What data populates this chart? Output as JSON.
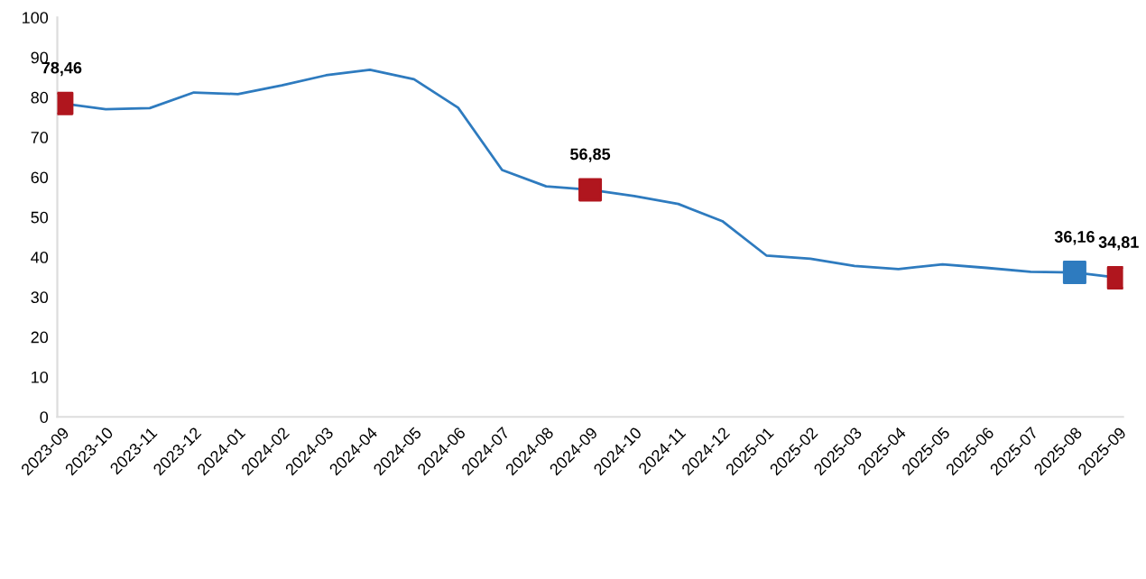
{
  "chart_data": {
    "type": "line",
    "categories": [
      "2023-09",
      "2023-10",
      "2023-11",
      "2023-12",
      "2024-01",
      "2024-02",
      "2024-03",
      "2024-04",
      "2024-05",
      "2024-06",
      "2024-07",
      "2024-08",
      "2024-09",
      "2024-10",
      "2024-11",
      "2024-12",
      "2025-01",
      "2025-02",
      "2025-03",
      "2025-04",
      "2025-05",
      "2025-06",
      "2025-07",
      "2025-08",
      "2025-09"
    ],
    "ylim": [
      0,
      100
    ],
    "yticks": [
      0,
      10,
      20,
      30,
      40,
      50,
      60,
      70,
      80,
      90,
      100
    ],
    "grid": false,
    "legend": false,
    "series": [
      {
        "color": "#2e7bbf",
        "marker": "none",
        "values": [
          78.46,
          77.0,
          77.3,
          81.2,
          80.8,
          83.0,
          85.5,
          86.9,
          84.5,
          77.4,
          61.8,
          57.7,
          56.85,
          55.3,
          53.3,
          49.0,
          40.4,
          39.6,
          37.8,
          37.0,
          38.2,
          37.3,
          36.3,
          36.16,
          34.81
        ]
      },
      {
        "type": "scatter",
        "marker": "square",
        "colors": [
          "#b0161e",
          null,
          null,
          null,
          null,
          null,
          null,
          null,
          null,
          null,
          null,
          null,
          "#b0161e",
          null,
          null,
          null,
          null,
          null,
          null,
          null,
          null,
          null,
          null,
          "#2e7bbf",
          "#b0161e"
        ],
        "values": [
          78.46,
          null,
          null,
          null,
          null,
          null,
          null,
          null,
          null,
          null,
          null,
          null,
          56.85,
          null,
          null,
          null,
          null,
          null,
          null,
          null,
          null,
          null,
          null,
          36.16,
          34.81
        ],
        "value_labels": [
          "78,46",
          null,
          null,
          null,
          null,
          null,
          null,
          null,
          null,
          null,
          null,
          null,
          "56,85",
          null,
          null,
          null,
          null,
          null,
          null,
          null,
          null,
          null,
          null,
          "36,16",
          "34,81"
        ]
      }
    ]
  }
}
